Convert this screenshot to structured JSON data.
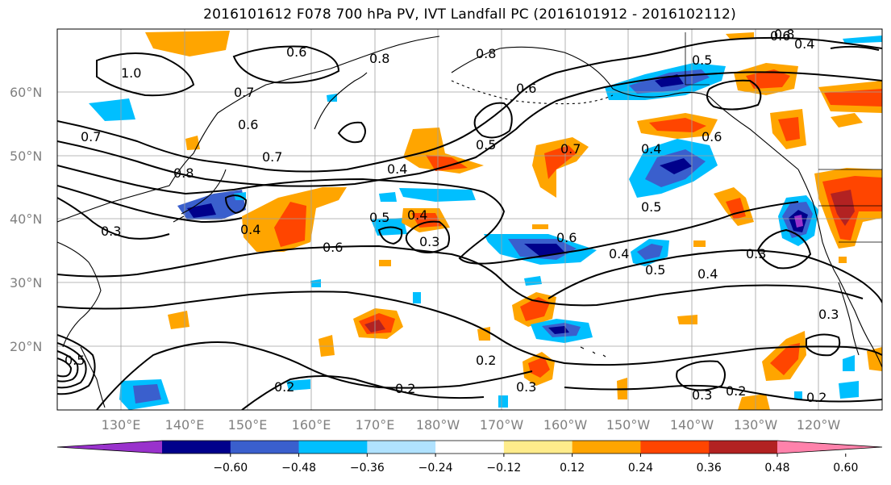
{
  "title": "2016101612 F078 700 hPa PV, IVT Landfall PC (2016101912 - 2016102112)",
  "lat_ticks": [
    "60°N",
    "50°N",
    "40°N",
    "30°N",
    "20°N"
  ],
  "lon_ticks": [
    "130°E",
    "140°E",
    "150°E",
    "160°E",
    "170°E",
    "180°W",
    "170°W",
    "160°W",
    "150°W",
    "140°W",
    "130°W",
    "120°W"
  ],
  "colorbar": {
    "tick_labels": [
      "−0.60",
      "−0.48",
      "−0.36",
      "−0.24",
      "−0.12",
      "0.12",
      "0.24",
      "0.36",
      "0.48",
      "0.60"
    ],
    "colors": [
      "#9932cc",
      "#00008b",
      "#3a5fcd",
      "#00bfff",
      "#b0e2ff",
      "#ffffff",
      "#ffec8b",
      "#ffa500",
      "#ff4500",
      "#b22222",
      "#ff82ab"
    ]
  },
  "pv_contour_labels": [
    "1.0",
    "0.6",
    "0.8",
    "0.8",
    "0.6",
    "0.5",
    "0.8",
    "0.7",
    "0.6",
    "0.7",
    "0.5",
    "0.7",
    "0.4",
    "0.6",
    "0.6",
    "0.8",
    "0.7",
    "0.4",
    "0.4",
    "0.5",
    "0.4",
    "0.3",
    "0.4",
    "0.6",
    "0.5",
    "0.3",
    "0.6",
    "0.4",
    "0.5",
    "0.4",
    "0.3",
    "0.3",
    "0.2",
    "0.3",
    "0.2",
    "0.3",
    "0.2",
    "0.2",
    "0.2",
    "0.5"
  ]
}
